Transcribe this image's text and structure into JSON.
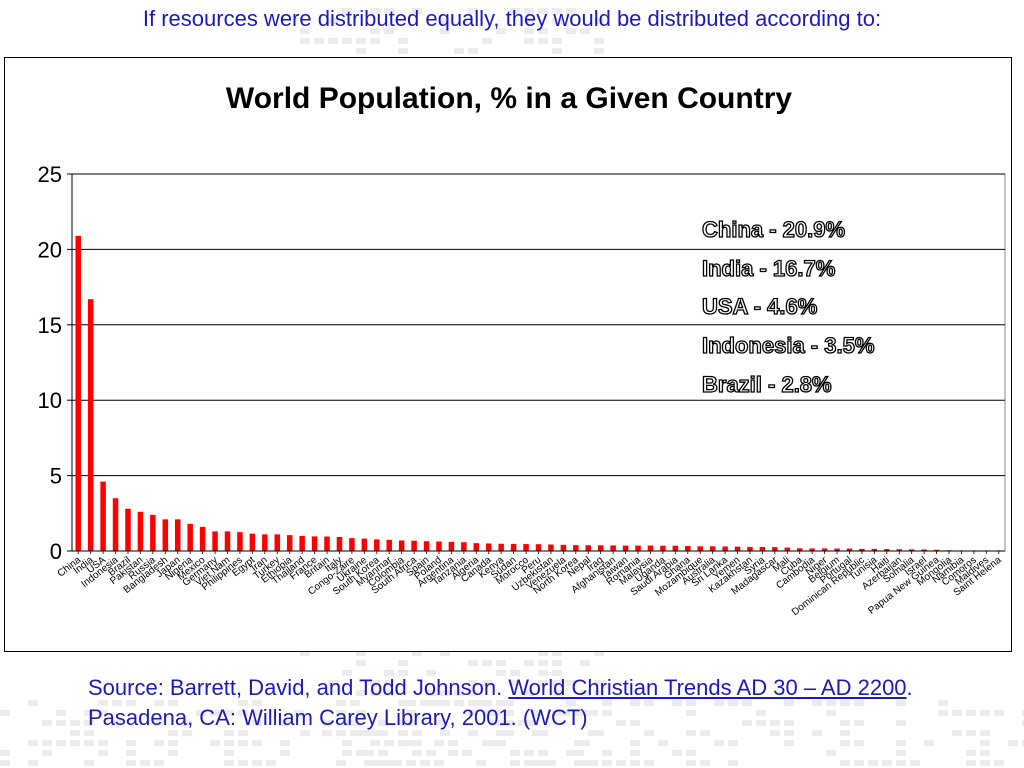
{
  "header": {
    "caption": "If resources were distributed equally, they would be distributed according to:"
  },
  "callouts": [
    "China - 20.9%",
    "India - 16.7%",
    "USA - 4.6%",
    "Indonesia - 3.5%",
    "Brazil - 2.8%"
  ],
  "source": {
    "prefix": "Source:  Barrett, David, and Todd Johnson.  ",
    "book_title": "World Christian Trends AD 30 – AD 2200",
    "suffix": ".   Pasadena, CA:  William Carey Library, 2001.  (WCT)"
  },
  "colors": {
    "bar": "#ff0000",
    "caption_text": "#1a1ab8",
    "grid": "#000000"
  },
  "chart_data": {
    "type": "bar",
    "title": "World Population, % in a Given Country",
    "xlabel": "",
    "ylabel": "",
    "ylim": [
      0,
      25
    ],
    "yticks": [
      0,
      5,
      10,
      15,
      20,
      25
    ],
    "grid": true,
    "legend": "none",
    "x_tick_labels": [
      "China",
      "India",
      "USA",
      "Indonesia",
      "Brazil",
      "Pakistan",
      "Russia",
      "Bangladesh",
      "Japan",
      "Nigeria",
      "Mexico",
      "Germany",
      "Viet Nam",
      "Philippines",
      "Egypt",
      "Iran",
      "Turkey",
      "Ethiopia",
      "Thailand",
      "France",
      "Britain",
      "Italy",
      "Congo-Zaire",
      "Ukraine",
      "South Korea",
      "Myanmar",
      "Colombia",
      "South Africa",
      "Spain",
      "Poland",
      "Argentina",
      "Tanzania",
      "Algeria",
      "Canada",
      "Kenya",
      "Sudan",
      "Morocco",
      "Peru",
      "Uzbekistan",
      "Venezuela",
      "North Korea",
      "Nepal",
      "Iraq",
      "Afghanistan",
      "Taiwan",
      "Romania",
      "Malaysia",
      "Uganda",
      "Saudi Arabia",
      "Ghana",
      "Mozambique",
      "Australia",
      "Sri Lanka",
      "Yemen",
      "Kazakhstan",
      "Syria",
      "Madagascar",
      "Mali",
      "Cuba",
      "Cambodia",
      "Niger",
      "Belgium",
      "Portugal",
      "Dominican Republic",
      "Tunisia",
      "Haiti",
      "Azerbaijan",
      "Somalia",
      "Israel",
      "Papua New Guinea",
      "Mongolia",
      "Namibia",
      "Comoros",
      "Maldives",
      "Saint Helena"
    ],
    "values": [
      20.9,
      16.7,
      4.6,
      3.5,
      2.8,
      2.6,
      2.4,
      2.1,
      2.1,
      1.8,
      1.6,
      1.3,
      1.3,
      1.25,
      1.15,
      1.1,
      1.1,
      1.05,
      1.0,
      0.97,
      0.96,
      0.93,
      0.85,
      0.82,
      0.77,
      0.74,
      0.7,
      0.68,
      0.65,
      0.63,
      0.61,
      0.58,
      0.52,
      0.5,
      0.48,
      0.47,
      0.46,
      0.45,
      0.43,
      0.41,
      0.39,
      0.38,
      0.38,
      0.37,
      0.36,
      0.36,
      0.36,
      0.35,
      0.35,
      0.33,
      0.31,
      0.31,
      0.3,
      0.29,
      0.27,
      0.27,
      0.26,
      0.23,
      0.18,
      0.17,
      0.17,
      0.16,
      0.16,
      0.14,
      0.14,
      0.13,
      0.12,
      0.11,
      0.1,
      0.08,
      0.05,
      0.03,
      0.02,
      0.01,
      0.005
    ]
  }
}
